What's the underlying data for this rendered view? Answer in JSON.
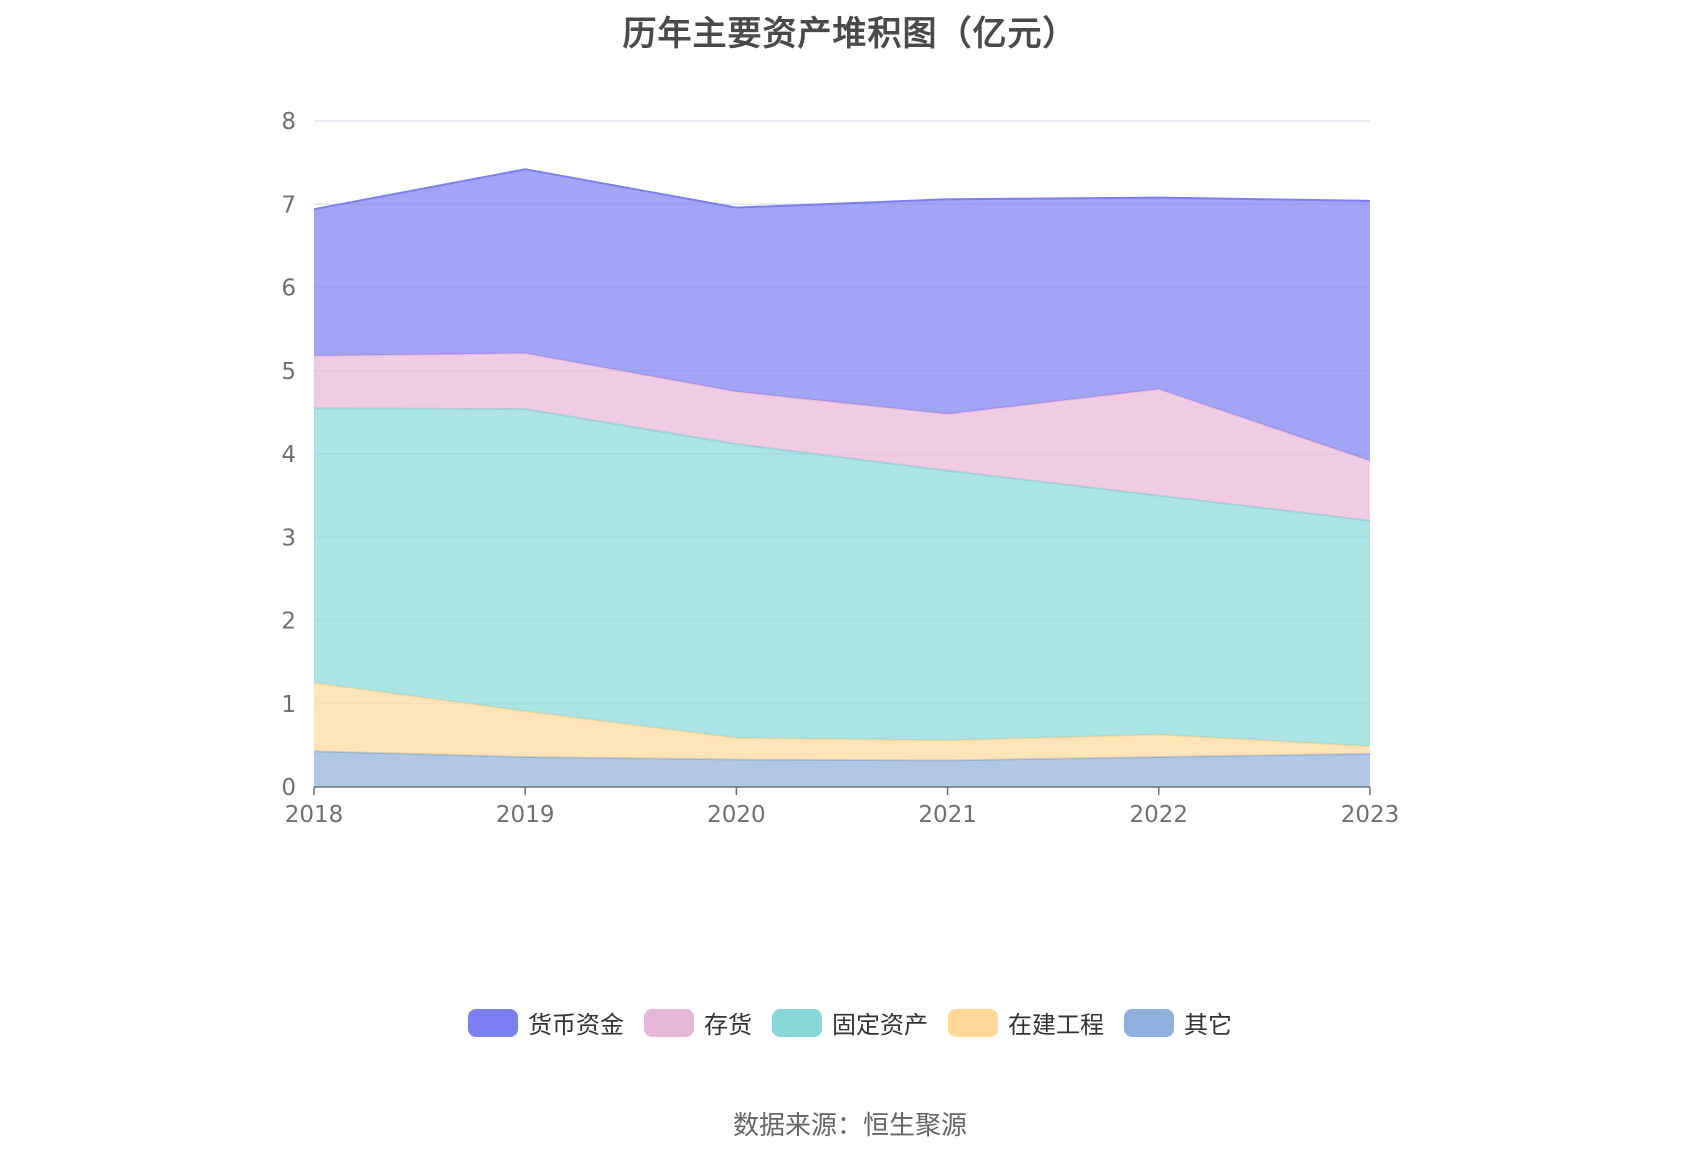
{
  "title": "历年主要资产堆积图（亿元）",
  "source": "数据来源：恒生聚源",
  "chart_data": {
    "type": "area",
    "stacked": true,
    "x": [
      "2018",
      "2019",
      "2020",
      "2021",
      "2022",
      "2023"
    ],
    "ylim": [
      0,
      8
    ],
    "yticks": [
      "0",
      "1",
      "2",
      "3",
      "4",
      "5",
      "6",
      "7",
      "8"
    ],
    "grid": true,
    "legend_position": "bottom",
    "series": [
      {
        "name": "其它",
        "color": "#8fb0dc",
        "values": [
          0.43,
          0.36,
          0.33,
          0.32,
          0.36,
          0.4
        ]
      },
      {
        "name": "在建工程",
        "color": "#ffd89a",
        "values": [
          0.82,
          0.55,
          0.26,
          0.24,
          0.27,
          0.09
        ]
      },
      {
        "name": "固定资产",
        "color": "#88d8d8",
        "values": [
          3.3,
          3.63,
          3.53,
          3.24,
          2.87,
          2.71
        ]
      },
      {
        "name": "存货",
        "color": "#e8b6d8",
        "values": [
          0.63,
          0.67,
          0.63,
          0.68,
          1.28,
          0.72
        ]
      },
      {
        "name": "货币资金",
        "color": "#7b7ff2",
        "values": [
          1.76,
          2.21,
          2.21,
          2.58,
          2.3,
          3.12
        ]
      }
    ],
    "legend_order": [
      "货币资金",
      "存货",
      "固定资产",
      "在建工程",
      "其它"
    ]
  }
}
